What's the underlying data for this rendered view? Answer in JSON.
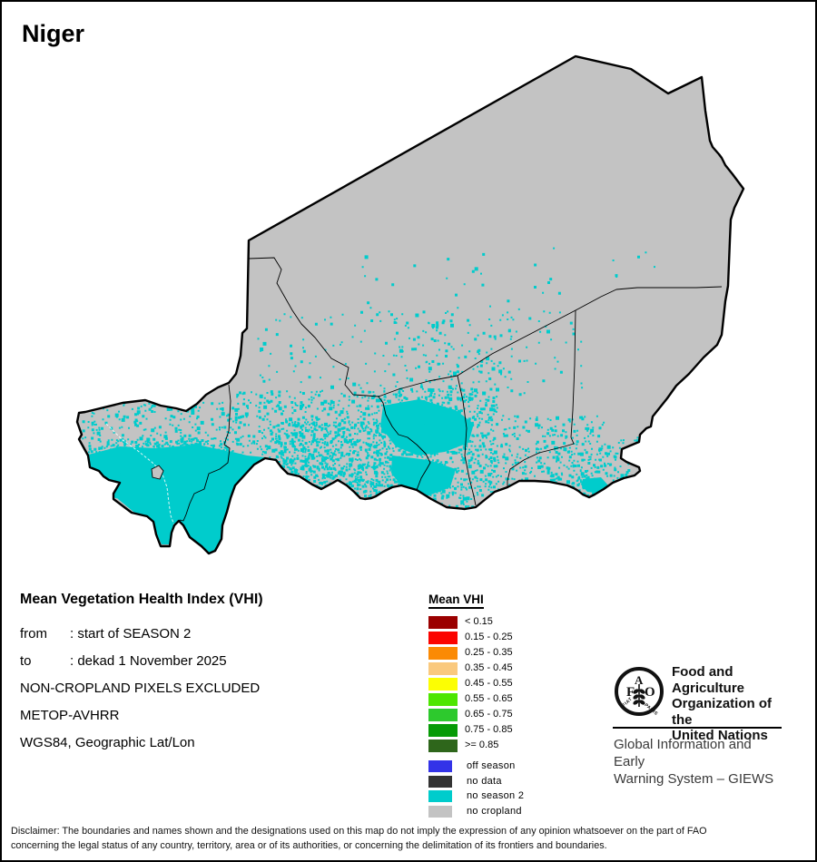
{
  "title": "Niger",
  "info": {
    "heading": "Mean Vegetation Health Index (VHI)",
    "rows": [
      {
        "label": "from",
        "sep": ":",
        "value": "start of SEASON 2"
      },
      {
        "label": "to",
        "sep": ":",
        "value": "dekad 1 November 2025"
      }
    ],
    "lines": [
      "NON-CROPLAND PIXELS EXCLUDED",
      "METOP-AVHRR",
      "WGS84, Geographic Lat/Lon"
    ]
  },
  "legend": {
    "title": "Mean VHI",
    "classes": [
      {
        "label": "< 0.15",
        "color": "#9B0000"
      },
      {
        "label": "0.15 - 0.25",
        "color": "#FB0400"
      },
      {
        "label": "0.25 - 0.35",
        "color": "#FB8A04"
      },
      {
        "label": "0.35 - 0.45",
        "color": "#FAC97E"
      },
      {
        "label": "0.45 - 0.55",
        "color": "#FCFE03"
      },
      {
        "label": "0.55 - 0.65",
        "color": "#4DE600"
      },
      {
        "label": "0.65 - 0.75",
        "color": "#2DC92D"
      },
      {
        "label": "0.75 - 0.85",
        "color": "#069B06"
      },
      {
        "label": ">= 0.85",
        "color": "#2E661B"
      }
    ],
    "extras": [
      {
        "label": "off season",
        "color": "#3333E8"
      },
      {
        "label": "no data",
        "color": "#333333"
      },
      {
        "label": "no season 2",
        "color": "#00CCCC"
      },
      {
        "label": "no cropland",
        "color": "#C3C3C3"
      }
    ]
  },
  "map_colors": {
    "land": "#C3C3C3",
    "season2": "#00CCCC",
    "border": "#000000",
    "river": "#FFFFFF"
  },
  "fao": {
    "org_lines": [
      "Food and Agriculture",
      "Organization of the",
      "United Nations"
    ],
    "giews_lines": [
      "Global Information and Early",
      "Warning System – GIEWS"
    ],
    "logo": {
      "f": "F",
      "a": "A",
      "o": "O",
      "motto_left": "FIAT",
      "motto_right": "PANIS"
    }
  },
  "disclaimer": {
    "lines": [
      "Disclaimer: The boundaries and names shown and the designations used on this map do not imply the expression of any opinion whatsoever on the part of FAO",
      "concerning the legal status of any country, territory, area or of its authorities, or concerning the delimitation of its frontiers and boundaries."
    ]
  }
}
